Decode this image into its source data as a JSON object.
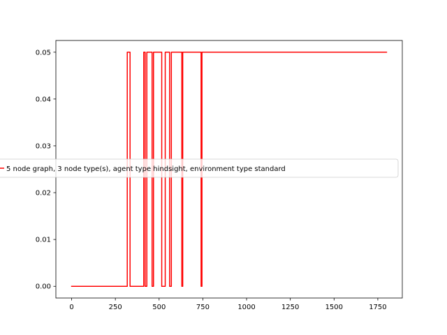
{
  "chart_data": {
    "type": "line",
    "xlabel": "",
    "ylabel": "",
    "xlim": [
      -90,
      1890
    ],
    "ylim": [
      -0.0025,
      0.0525
    ],
    "xticks": [
      0,
      250,
      500,
      750,
      1000,
      1250,
      1500,
      1750
    ],
    "xtick_labels": [
      "0",
      "250",
      "500",
      "750",
      "1000",
      "1250",
      "1500",
      "1750"
    ],
    "yticks": [
      0.0,
      0.01,
      0.02,
      0.03,
      0.04,
      0.05
    ],
    "ytick_labels": [
      "0.00",
      "0.01",
      "0.02",
      "0.03",
      "0.04",
      "0.05"
    ],
    "grid": false,
    "legend_position": "center-left",
    "series": [
      {
        "name": "5 node graph, 3 node type(s), agent type hindsight, environment type standard",
        "color": "#ff0000",
        "step": true,
        "x": [
          0,
          318,
          318,
          334,
          334,
          412,
          412,
          420,
          420,
          430,
          430,
          460,
          460,
          468,
          468,
          515,
          515,
          535,
          535,
          560,
          560,
          570,
          570,
          630,
          630,
          635,
          635,
          740,
          740,
          745,
          745,
          1800
        ],
        "y": [
          0,
          0,
          0.05,
          0.05,
          0,
          0,
          0.05,
          0.05,
          0,
          0,
          0.05,
          0.05,
          0,
          0,
          0.05,
          0.05,
          0,
          0,
          0.05,
          0.05,
          0,
          0,
          0.05,
          0.05,
          0,
          0,
          0.05,
          0.05,
          0,
          0,
          0.05,
          0.05
        ]
      }
    ]
  }
}
